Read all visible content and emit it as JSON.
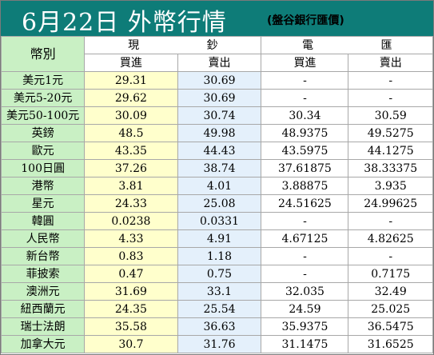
{
  "header": {
    "title": "6月22日 外幣行情",
    "subtitle": "(盤谷銀行匯價)"
  },
  "table": {
    "currency_label": "幣別",
    "group_cash": "現 鈔",
    "group_wire": "電 匯",
    "buy_label": "買進",
    "sell_label": "賣出",
    "rows": [
      {
        "name": "美元1元",
        "cash_buy": "29.31",
        "cash_sell": "30.69",
        "wire_buy": "-",
        "wire_sell": "-"
      },
      {
        "name": "美元5-20元",
        "cash_buy": "29.62",
        "cash_sell": "30.69",
        "wire_buy": "-",
        "wire_sell": "-"
      },
      {
        "name": "美元50-100元",
        "cash_buy": "30.09",
        "cash_sell": "30.74",
        "wire_buy": "30.34",
        "wire_sell": "30.59"
      },
      {
        "name": "英鎊",
        "cash_buy": "48.5",
        "cash_sell": "49.98",
        "wire_buy": "48.9375",
        "wire_sell": "49.5275"
      },
      {
        "name": "歐元",
        "cash_buy": "43.35",
        "cash_sell": "44.43",
        "wire_buy": "43.5975",
        "wire_sell": "44.1275"
      },
      {
        "name": "100日圓",
        "cash_buy": "37.26",
        "cash_sell": "38.74",
        "wire_buy": "37.61875",
        "wire_sell": "38.33375"
      },
      {
        "name": "港幣",
        "cash_buy": "3.81",
        "cash_sell": "4.01",
        "wire_buy": "3.88875",
        "wire_sell": "3.935"
      },
      {
        "name": "星元",
        "cash_buy": "24.33",
        "cash_sell": "25.08",
        "wire_buy": "24.51625",
        "wire_sell": "24.99625"
      },
      {
        "name": "韓圓",
        "cash_buy": "0.0238",
        "cash_sell": "0.0331",
        "wire_buy": "-",
        "wire_sell": "-"
      },
      {
        "name": "人民幣",
        "cash_buy": "4.33",
        "cash_sell": "4.91",
        "wire_buy": "4.67125",
        "wire_sell": "4.82625"
      },
      {
        "name": "新台幣",
        "cash_buy": "0.83",
        "cash_sell": "1.18",
        "wire_buy": "-",
        "wire_sell": "-"
      },
      {
        "name": "菲披索",
        "cash_buy": "0.47",
        "cash_sell": "0.75",
        "wire_buy": "-",
        "wire_sell": "0.7175"
      },
      {
        "name": "澳洲元",
        "cash_buy": "31.69",
        "cash_sell": "33.1",
        "wire_buy": "32.035",
        "wire_sell": "32.49"
      },
      {
        "name": "紐西蘭元",
        "cash_buy": "24.35",
        "cash_sell": "25.54",
        "wire_buy": "24.59",
        "wire_sell": "25.025"
      },
      {
        "name": "瑞士法朗",
        "cash_buy": "35.58",
        "cash_sell": "36.63",
        "wire_buy": "35.9375",
        "wire_sell": "36.5475"
      },
      {
        "name": "加拿大元",
        "cash_buy": "30.7",
        "cash_sell": "31.76",
        "wire_buy": "31.1475",
        "wire_sell": "31.6525"
      }
    ]
  },
  "colors": {
    "header_bg": "#0e7c78",
    "name_bg": "#c9f0c4",
    "cash_buy_bg": "#ffffcc",
    "cash_sell_bg": "#e4f0fb"
  }
}
